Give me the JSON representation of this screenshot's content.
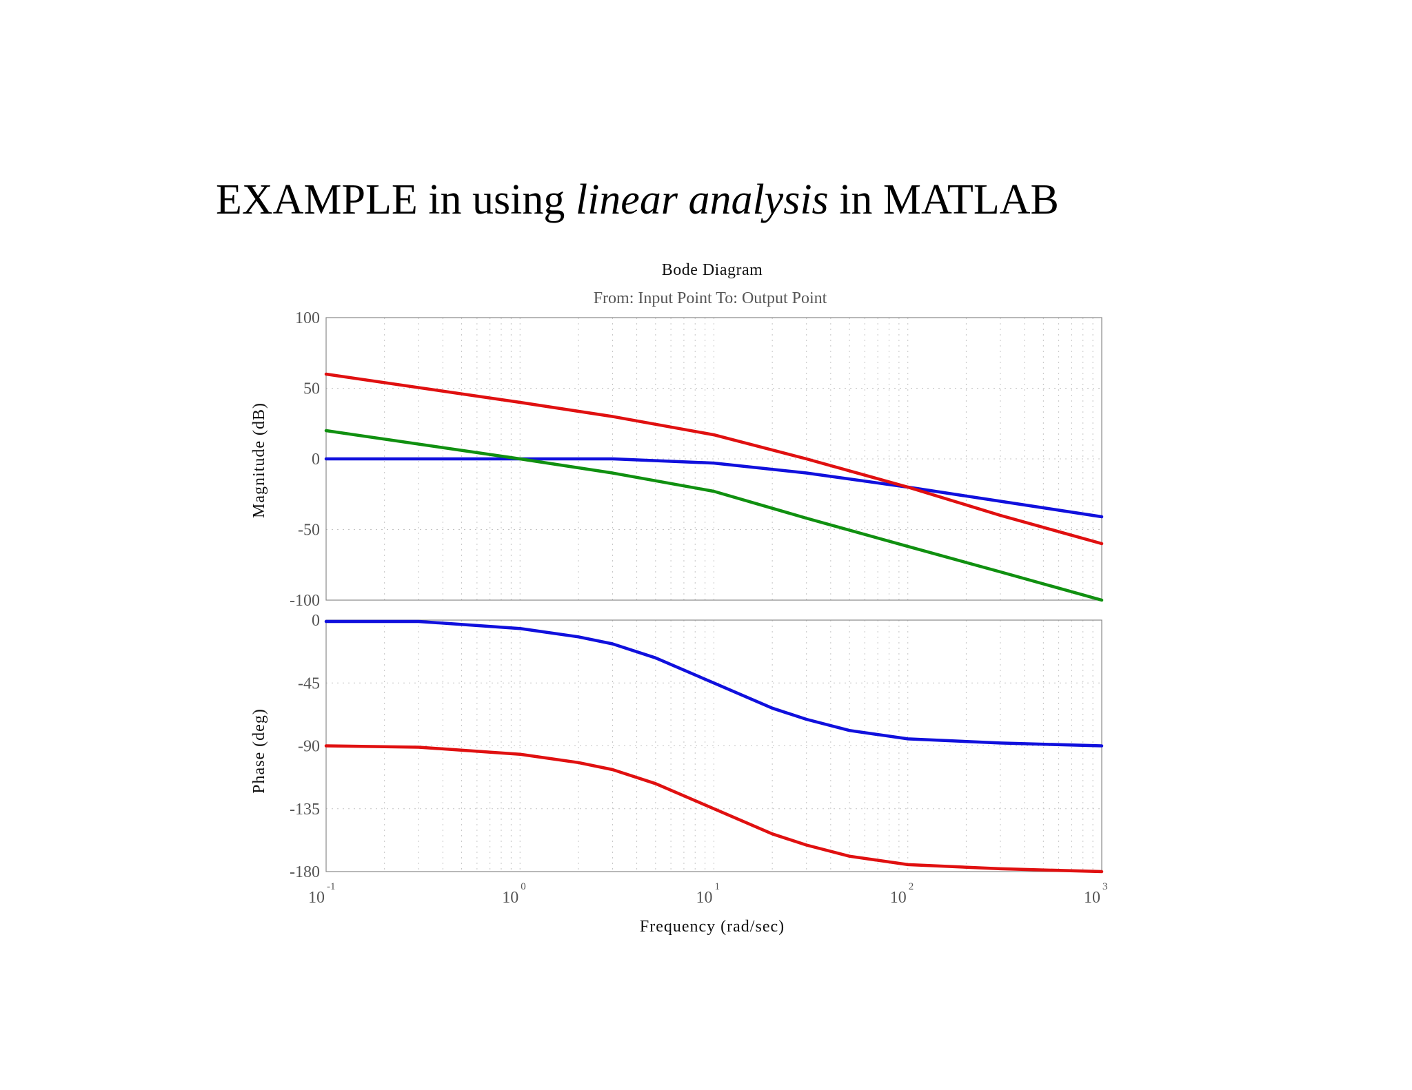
{
  "slide": {
    "title_pre": "EXAMPLE in using ",
    "title_italic": "linear analysis",
    "title_post": " in MATLAB"
  },
  "chart_data": {
    "type": "line",
    "title": "Bode Diagram",
    "subtitle": "From: Input Point  To: Output Point",
    "xlabel": "Frequency  (rad/sec)",
    "xscale": "log",
    "xlim": [
      0.1,
      1000
    ],
    "x_ticks": [
      {
        "base": "10",
        "exp": "-1",
        "value": 0.1
      },
      {
        "base": "10",
        "exp": "0",
        "value": 1
      },
      {
        "base": "10",
        "exp": "1",
        "value": 10
      },
      {
        "base": "10",
        "exp": "2",
        "value": 100
      },
      {
        "base": "10",
        "exp": "3",
        "value": 1000
      }
    ],
    "grid": true,
    "colors": {
      "blue": "#1010dd",
      "red": "#e01010",
      "green": "#109010"
    },
    "panels": [
      {
        "name": "magnitude",
        "ylabel": "Magnitude (dB)",
        "ylim": [
          -100,
          100
        ],
        "y_ticks": [
          {
            "label": "100",
            "value": 100
          },
          {
            "label": "50",
            "value": 50
          },
          {
            "label": "0",
            "value": 0
          },
          {
            "label": "-50",
            "value": -50
          },
          {
            "label": "-100",
            "value": -100
          }
        ],
        "series": [
          {
            "color": "blue",
            "x": [
              0.1,
              1,
              3,
              10,
              30,
              100,
              300,
              1000
            ],
            "y": [
              0,
              0,
              0,
              -3,
              -10,
              -20,
              -30,
              -41
            ]
          },
          {
            "color": "red",
            "x": [
              0.1,
              1,
              3,
              10,
              30,
              100,
              300,
              1000
            ],
            "y": [
              60,
              40,
              30,
              17,
              0,
              -20,
              -40,
              -60
            ]
          },
          {
            "color": "green",
            "x": [
              0.1,
              1,
              3,
              10,
              30,
              100,
              300,
              1000
            ],
            "y": [
              20,
              0,
              -10,
              -23,
              -42,
              -62,
              -80,
              -100
            ]
          }
        ]
      },
      {
        "name": "phase",
        "ylabel": "Phase (deg)",
        "ylim": [
          -180,
          0
        ],
        "y_ticks": [
          {
            "label": "0",
            "value": 0
          },
          {
            "label": "-45",
            "value": -45
          },
          {
            "label": "-90",
            "value": -90
          },
          {
            "label": "-135",
            "value": -135
          },
          {
            "label": "-180",
            "value": -180
          }
        ],
        "series": [
          {
            "color": "blue",
            "x": [
              0.1,
              0.3,
              1,
              2,
              3,
              5,
              10,
              20,
              30,
              50,
              100,
              300,
              1000
            ],
            "y": [
              -1,
              -1,
              -6,
              -12,
              -17,
              -27,
              -45,
              -63,
              -71,
              -79,
              -85,
              -88,
              -90
            ]
          },
          {
            "color": "red",
            "x": [
              0.1,
              0.3,
              1,
              2,
              3,
              5,
              10,
              20,
              30,
              50,
              100,
              300,
              1000
            ],
            "y": [
              -90,
              -91,
              -96,
              -102,
              -107,
              -117,
              -135,
              -153,
              -161,
              -169,
              -175,
              -178,
              -180
            ]
          }
        ]
      }
    ]
  }
}
